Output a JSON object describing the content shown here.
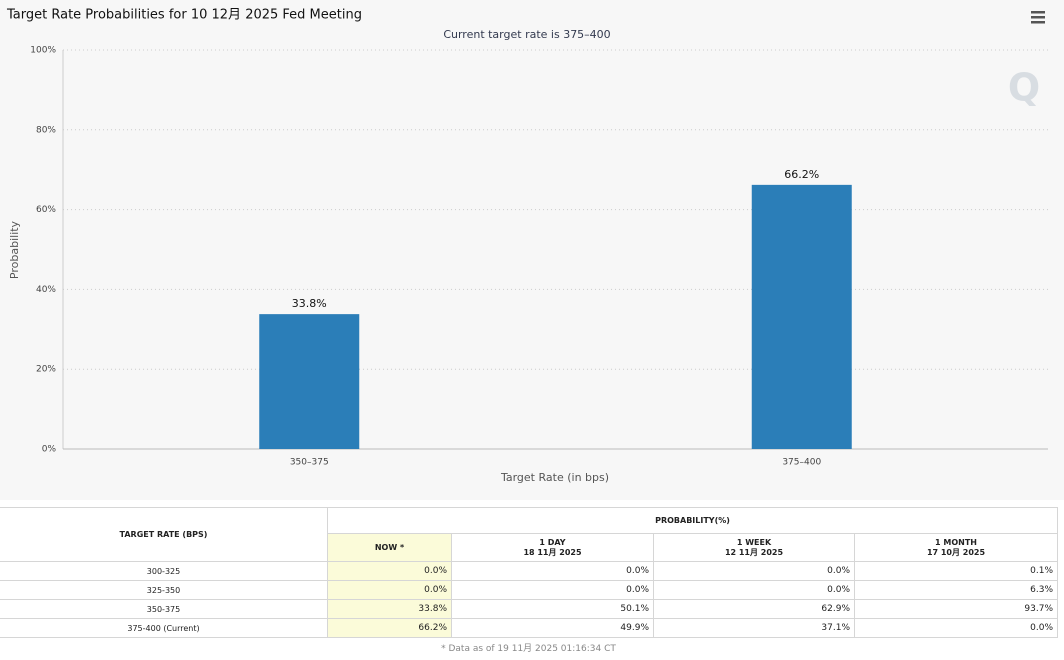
{
  "chart_data": {
    "type": "bar",
    "title": "Target Rate Probabilities for 10 12月 2025 Fed Meeting",
    "subtitle": "Current target rate is 375–400",
    "ylabel": "Probability",
    "xlabel": "Target Rate (in bps)",
    "categories": [
      "350–375",
      "375–400"
    ],
    "values": [
      33.8,
      66.2
    ],
    "value_labels": [
      "33.8%",
      "66.2%"
    ],
    "color": "#2b7eb8",
    "ylim": [
      0,
      100
    ],
    "yticks": [
      {
        "value": 0,
        "label": "0%"
      },
      {
        "value": 20,
        "label": "20%"
      },
      {
        "value": 40,
        "label": "40%"
      },
      {
        "value": 60,
        "label": "60%"
      },
      {
        "value": 80,
        "label": "80%"
      },
      {
        "value": 100,
        "label": "100%"
      }
    ],
    "grid": true
  },
  "table": {
    "rate_header": "TARGET RATE (BPS)",
    "prob_header": "PROBABILITY(%)",
    "columns": [
      [
        "NOW *"
      ],
      [
        "1 DAY",
        "18 11月 2025"
      ],
      [
        "1 WEEK",
        "12 11月 2025"
      ],
      [
        "1 MONTH",
        "17 10月 2025"
      ]
    ],
    "rows": [
      [
        "300-325",
        "0.0%",
        "0.0%",
        "0.0%",
        "0.1%"
      ],
      [
        "325-350",
        "0.0%",
        "0.0%",
        "0.0%",
        "6.3%"
      ],
      [
        "350-375",
        "33.8%",
        "50.1%",
        "62.9%",
        "93.7%"
      ],
      [
        "375-400 (Current)",
        "66.2%",
        "49.9%",
        "37.1%",
        "0.0%"
      ]
    ],
    "footnote": "* Data as of 19 11月 2025 01:16:34 CT"
  }
}
